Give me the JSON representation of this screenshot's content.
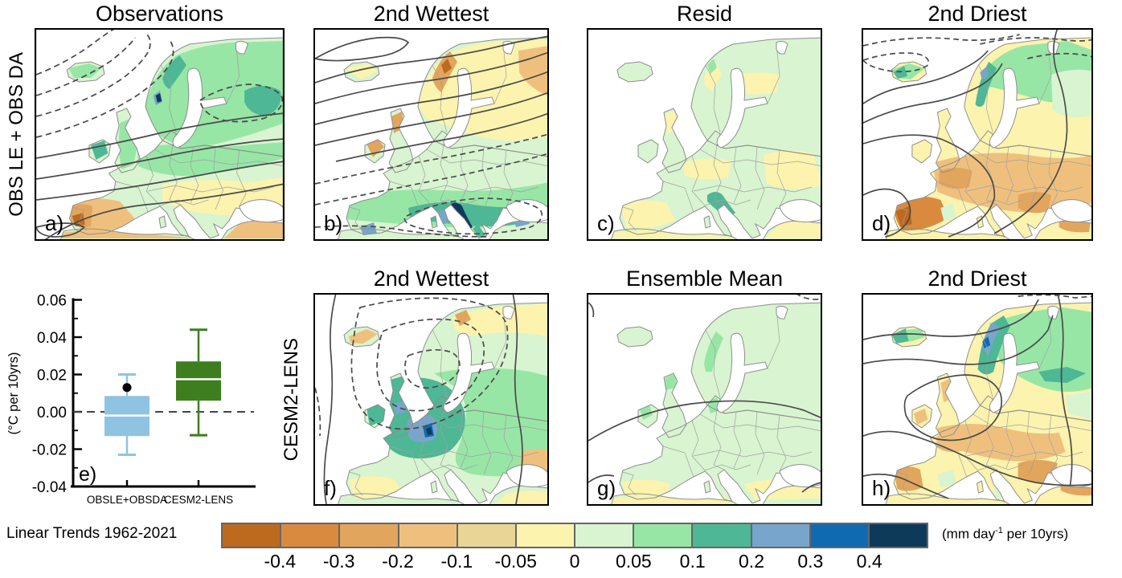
{
  "figure": {
    "rows": [
      {
        "label": "OBS LE + OBS DA",
        "panels": [
          {
            "letter": "a)",
            "title": "Observations",
            "shading": "green/teal wetting over Scandinavia, Britain and central-eastern Europe; yellow-tan drying over Iberia, southeastern Europe, Turkey and North Africa; dashed contours northwest, solid contours center and south"
          },
          {
            "letter": "b)",
            "title": "2nd Wettest",
            "shading": "orange drying along the Norwegian coast, Scotland and Ireland; strong green-blue wetting over the Mediterranean with dark navy along the Adriatic; solid contours across the north, dashed contours and a dashed oval over the Mediterranean"
          },
          {
            "letter": "c)",
            "title": "Resid",
            "shading": "weak residual pattern of pale green and pale yellow patches; small teal spot near northern Italy and the Adriatic; no contours"
          },
          {
            "letter": "d)",
            "title": "2nd Driest",
            "shading": "tan-orange drying over most of Europe with dark orange over Portugal; green wetting over Scandinavia, Iceland and the far northeast; dashed arcs in the north, broad solid contour sweeps"
          }
        ]
      },
      {
        "label": "CESM2-LENS",
        "panels": [
          {
            "letter": "f)",
            "title": "2nd Wettest",
            "shading": "strong teal-blue wetting centered on France, Britain and central Europe with small navy core; pale yellow and orange in far northern Scandinavia; concentric dashed contour ovals over northwest Europe"
          },
          {
            "letter": "g)",
            "title": "Ensemble Mean",
            "shading": "weak uniform pale green wetting over most of Europe; pale yellow along southern Iberia, Greece and Turkey; single solid contour arc across the middle"
          },
          {
            "letter": "h)",
            "title": "2nd Driest",
            "shading": "tan-orange drying over western and central Europe, Balkans and Turkey; green-teal wetting over Scandinavia, Iceland and northeastern Europe with small blue spot on the Norwegian coast; solid contour sweeps and a closed contour over Britain/France"
          }
        ]
      }
    ]
  },
  "chart_data": [
    {
      "type": "box",
      "panel_letter": "e)",
      "ylabel": "(°C per 10yrs)",
      "ylim": [
        -0.04,
        0.06
      ],
      "yticks": [
        -0.04,
        -0.02,
        0.0,
        0.02,
        0.04,
        0.06
      ],
      "zero_dashed_line": 0.0,
      "categories": [
        "OBSLE+OBSDA",
        "CESM2-LENS"
      ],
      "series": [
        {
          "name": "OBSLE+OBSDA",
          "color": "#8fc3e2",
          "whisker_low": -0.023,
          "q1": -0.013,
          "median": -0.002,
          "q3": 0.0085,
          "whisker_high": 0.02,
          "outlier": 0.013,
          "outlier_color": "#000000"
        },
        {
          "name": "CESM2-LENS",
          "color": "#3e7e1f",
          "whisker_low": -0.0125,
          "q1": 0.006,
          "median": 0.0175,
          "q3": 0.027,
          "whisker_high": 0.044
        }
      ]
    },
    {
      "type": "heatmap",
      "note": "seven filled-contour maps of Europe sharing one discrete color scale",
      "scale_boundaries": [
        -0.4,
        -0.3,
        -0.2,
        -0.1,
        -0.05,
        0,
        0.05,
        0.1,
        0.2,
        0.3,
        0.4
      ],
      "units": "(mm day-1 per 10yrs)",
      "caption": "Linear Trends 1962-2021"
    }
  ],
  "colorbar": {
    "label_left": "Linear Trends 1962-2021",
    "tick_labels": [
      "-0.4",
      "-0.3",
      "-0.2",
      "-0.1",
      "-0.05",
      "0",
      "0.05",
      "0.1",
      "0.2",
      "0.3",
      "0.4"
    ],
    "colors": [
      "#bd6a1e",
      "#d98a3f",
      "#e2a55e",
      "#efc07d",
      "#e9d697",
      "#fbf3ae",
      "#d8f4d0",
      "#97e6a6",
      "#4eb795",
      "#78a5cb",
      "#0f6ab1",
      "#0e3a5a"
    ],
    "units_pre": "(mm day",
    "units_sup": "-1",
    "units_post": " per 10yrs)"
  }
}
